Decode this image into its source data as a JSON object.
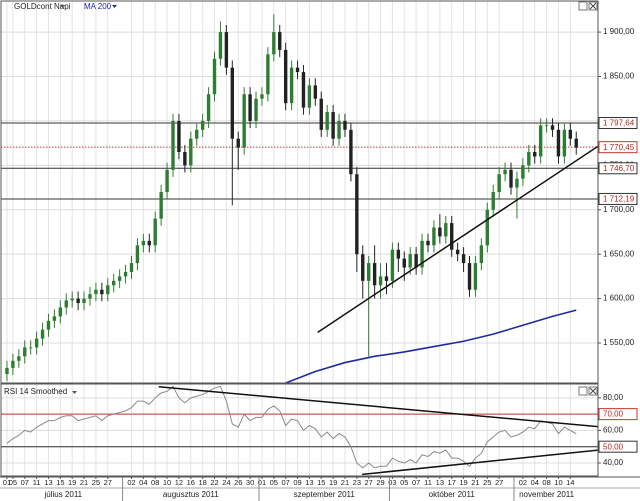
{
  "chart_data": [
    {
      "type": "candlestick",
      "title": "GOLDcont Napi",
      "months": [
        {
          "label": "július 2011",
          "categories": [
            "01",
            "05",
            null,
            "07",
            null,
            "11",
            null,
            "13",
            null,
            "15",
            null,
            "19",
            null,
            "21",
            null,
            "25",
            null,
            "27",
            null,
            null
          ]
        },
        {
          "label": "augusztus 2011",
          "categories": [
            null,
            "02",
            null,
            "04",
            null,
            "08",
            null,
            "10",
            null,
            "12",
            null,
            "16",
            null,
            "18",
            null,
            "22",
            null,
            "24",
            null,
            "26",
            null,
            "30",
            null
          ]
        },
        {
          "label": "szeptember 2011",
          "categories": [
            "01",
            null,
            "05",
            null,
            "07",
            null,
            "09",
            null,
            "13",
            null,
            "15",
            null,
            "19",
            null,
            "21",
            null,
            "23",
            null,
            "27",
            null,
            "29",
            null
          ]
        },
        {
          "label": "október 2011",
          "categories": [
            "03",
            null,
            "05",
            null,
            "07",
            null,
            "11",
            null,
            "13",
            null,
            "17",
            null,
            "19",
            null,
            "21",
            null,
            "25",
            null,
            "27",
            null,
            null
          ]
        },
        {
          "label": "november 2011",
          "categories": [
            null,
            "02",
            null,
            "04",
            null,
            "08",
            null,
            "10",
            null,
            "14",
            null
          ]
        }
      ],
      "open": [
        1515,
        1522,
        1530,
        1535,
        1545,
        1545,
        1555,
        1565,
        1575,
        1580,
        1590,
        1598,
        1600,
        1595,
        1600,
        1605,
        1610,
        1605,
        1615,
        1620,
        1625,
        1630,
        1640,
        1660,
        1665,
        1660,
        1690,
        1720,
        1745,
        1800,
        1765,
        1750,
        1780,
        1790,
        1800,
        1830,
        1870,
        1900,
        1860,
        1780,
        1770,
        1830,
        1800,
        1825,
        1830,
        1875,
        1900,
        1880,
        1820,
        1860,
        1855,
        1815,
        1840,
        1825,
        1790,
        1810,
        1780,
        1800,
        1790,
        1740,
        1650,
        1620,
        1640,
        1615,
        1625,
        1620,
        1655,
        1645,
        1635,
        1650,
        1635,
        1665,
        1660,
        1680,
        1670,
        1685,
        1655,
        1650,
        1640,
        1610,
        1640,
        1660,
        1700,
        1720,
        1740,
        1745,
        1725,
        1735,
        1750,
        1765,
        1760,
        1795,
        1795,
        1790,
        1760,
        1790,
        1780
      ],
      "high": [
        1530,
        1538,
        1543,
        1553,
        1553,
        1563,
        1573,
        1583,
        1588,
        1598,
        1606,
        1608,
        1608,
        1608,
        1613,
        1618,
        1618,
        1623,
        1628,
        1633,
        1638,
        1648,
        1668,
        1673,
        1673,
        1698,
        1728,
        1753,
        1808,
        1808,
        1773,
        1788,
        1798,
        1808,
        1838,
        1878,
        1912,
        1908,
        1868,
        1788,
        1838,
        1838,
        1833,
        1838,
        1883,
        1920,
        1908,
        1888,
        1868,
        1868,
        1863,
        1848,
        1848,
        1833,
        1818,
        1818,
        1808,
        1808,
        1798,
        1748,
        1660,
        1648,
        1660,
        1640,
        1640,
        1663,
        1663,
        1653,
        1658,
        1658,
        1673,
        1673,
        1688,
        1695,
        1693,
        1693,
        1663,
        1658,
        1648,
        1648,
        1668,
        1708,
        1728,
        1748,
        1753,
        1753,
        1743,
        1758,
        1773,
        1773,
        1803,
        1803,
        1803,
        1798,
        1798,
        1798,
        1788
      ],
      "low": [
        1507,
        1514,
        1522,
        1527,
        1537,
        1537,
        1547,
        1557,
        1567,
        1572,
        1582,
        1590,
        1587,
        1587,
        1592,
        1597,
        1597,
        1597,
        1607,
        1612,
        1617,
        1622,
        1632,
        1652,
        1652,
        1652,
        1682,
        1712,
        1737,
        1757,
        1742,
        1742,
        1772,
        1782,
        1792,
        1822,
        1862,
        1852,
        1705,
        1745,
        1762,
        1792,
        1792,
        1817,
        1822,
        1867,
        1872,
        1812,
        1812,
        1847,
        1807,
        1807,
        1817,
        1782,
        1782,
        1772,
        1772,
        1782,
        1732,
        1630,
        1600,
        1535,
        1600,
        1600,
        1605,
        1612,
        1630,
        1620,
        1627,
        1627,
        1627,
        1652,
        1652,
        1662,
        1662,
        1647,
        1642,
        1630,
        1602,
        1602,
        1632,
        1652,
        1692,
        1712,
        1732,
        1717,
        1690,
        1727,
        1742,
        1752,
        1752,
        1787,
        1782,
        1752,
        1752,
        1772,
        1762
      ],
      "close": [
        1522,
        1530,
        1535,
        1545,
        1545,
        1555,
        1565,
        1575,
        1580,
        1590,
        1598,
        1600,
        1595,
        1600,
        1605,
        1610,
        1605,
        1615,
        1620,
        1625,
        1630,
        1640,
        1660,
        1665,
        1660,
        1690,
        1720,
        1745,
        1800,
        1765,
        1750,
        1780,
        1790,
        1800,
        1830,
        1870,
        1900,
        1860,
        1780,
        1770,
        1830,
        1800,
        1825,
        1830,
        1875,
        1900,
        1880,
        1820,
        1860,
        1855,
        1815,
        1840,
        1825,
        1790,
        1810,
        1780,
        1800,
        1790,
        1740,
        1650,
        1620,
        1640,
        1615,
        1625,
        1620,
        1655,
        1645,
        1635,
        1650,
        1635,
        1665,
        1660,
        1680,
        1670,
        1685,
        1655,
        1650,
        1640,
        1610,
        1640,
        1660,
        1700,
        1720,
        1740,
        1745,
        1725,
        1735,
        1750,
        1765,
        1760,
        1795,
        1795,
        1790,
        1760,
        1790,
        1780,
        1770
      ],
      "up_color": "#2f7d32",
      "down_color": "#222222",
      "ma": {
        "name": "MA 200",
        "color": "#1f2aa0",
        "x": [
          47,
          52,
          57,
          62,
          67,
          72,
          77,
          82,
          87,
          92,
          96
        ],
        "values": [
          1505,
          1518,
          1528,
          1535,
          1540,
          1546,
          1552,
          1560,
          1570,
          1580,
          1587
        ]
      },
      "levels": [
        {
          "value": 1797.64,
          "label": "1 797,64",
          "color": "#333333",
          "dotted": false
        },
        {
          "value": 1770.45,
          "label": "1 770,45",
          "color": "#c0392b",
          "dotted": true
        },
        {
          "value": 1746.7,
          "label": "1 746,70",
          "color": "#333333",
          "dotted": false
        },
        {
          "value": 1712.19,
          "label": "1 712,19",
          "color": "#333333",
          "dotted": false
        }
      ],
      "trendlines": [
        {
          "x": [
            52.4,
            100
          ],
          "values": [
            1562,
            1773
          ]
        }
      ],
      "ylim": [
        1505,
        1935
      ],
      "yticks": [
        {
          "value": 1550,
          "label": "1 550,00"
        },
        {
          "value": 1600,
          "label": "1 600,00"
        },
        {
          "value": 1650,
          "label": "1 650,00"
        },
        {
          "value": 1700,
          "label": "1 700,00"
        },
        {
          "value": 1750,
          "label": "1 750,00"
        },
        {
          "value": 1800,
          "label": "1 800,00"
        },
        {
          "value": 1850,
          "label": "1 850,00"
        },
        {
          "value": 1900,
          "label": "1 900,00"
        }
      ],
      "grid": true
    },
    {
      "type": "line",
      "title": "RSI 14 Smoothed",
      "color": "#8a8a8a",
      "values": [
        52,
        55,
        57,
        60,
        59,
        62,
        64,
        66,
        66,
        68,
        69,
        69,
        66,
        67,
        68,
        69,
        66,
        69,
        70,
        71,
        72,
        74,
        78,
        78,
        76,
        80,
        83,
        84,
        87,
        80,
        77,
        80,
        81,
        82,
        84,
        86,
        87,
        78,
        64,
        62,
        70,
        66,
        68,
        68,
        73,
        75,
        72,
        63,
        67,
        66,
        60,
        63,
        61,
        56,
        59,
        55,
        58,
        56,
        50,
        40,
        37,
        40,
        37,
        38,
        38,
        43,
        41,
        40,
        42,
        40,
        45,
        44,
        47,
        46,
        48,
        43,
        43,
        41,
        38,
        43,
        46,
        53,
        56,
        59,
        60,
        56,
        57,
        59,
        62,
        61,
        66,
        65,
        64,
        58,
        62,
        60,
        58
      ],
      "levels": [
        {
          "value": 70,
          "label": "70,00",
          "color": "#c0392b",
          "dotted": false
        },
        {
          "value": 50,
          "label": "50,00",
          "color": "#333333",
          "dotted": false
        }
      ],
      "trendlines": [
        {
          "x": [
            25.6,
            100
          ],
          "values": [
            86.8,
            62.2
          ]
        },
        {
          "x": [
            59.9,
            100
          ],
          "values": [
            33,
            48
          ]
        }
      ],
      "ylim": [
        32,
        88.5
      ],
      "yticks": [
        {
          "value": 40,
          "label": "40,00"
        },
        {
          "value": 50,
          "label": "50,00"
        },
        {
          "value": 60,
          "label": "60,00"
        },
        {
          "value": 70,
          "label": "70,00"
        },
        {
          "value": 80,
          "label": "80,00"
        }
      ],
      "grid": true
    }
  ]
}
